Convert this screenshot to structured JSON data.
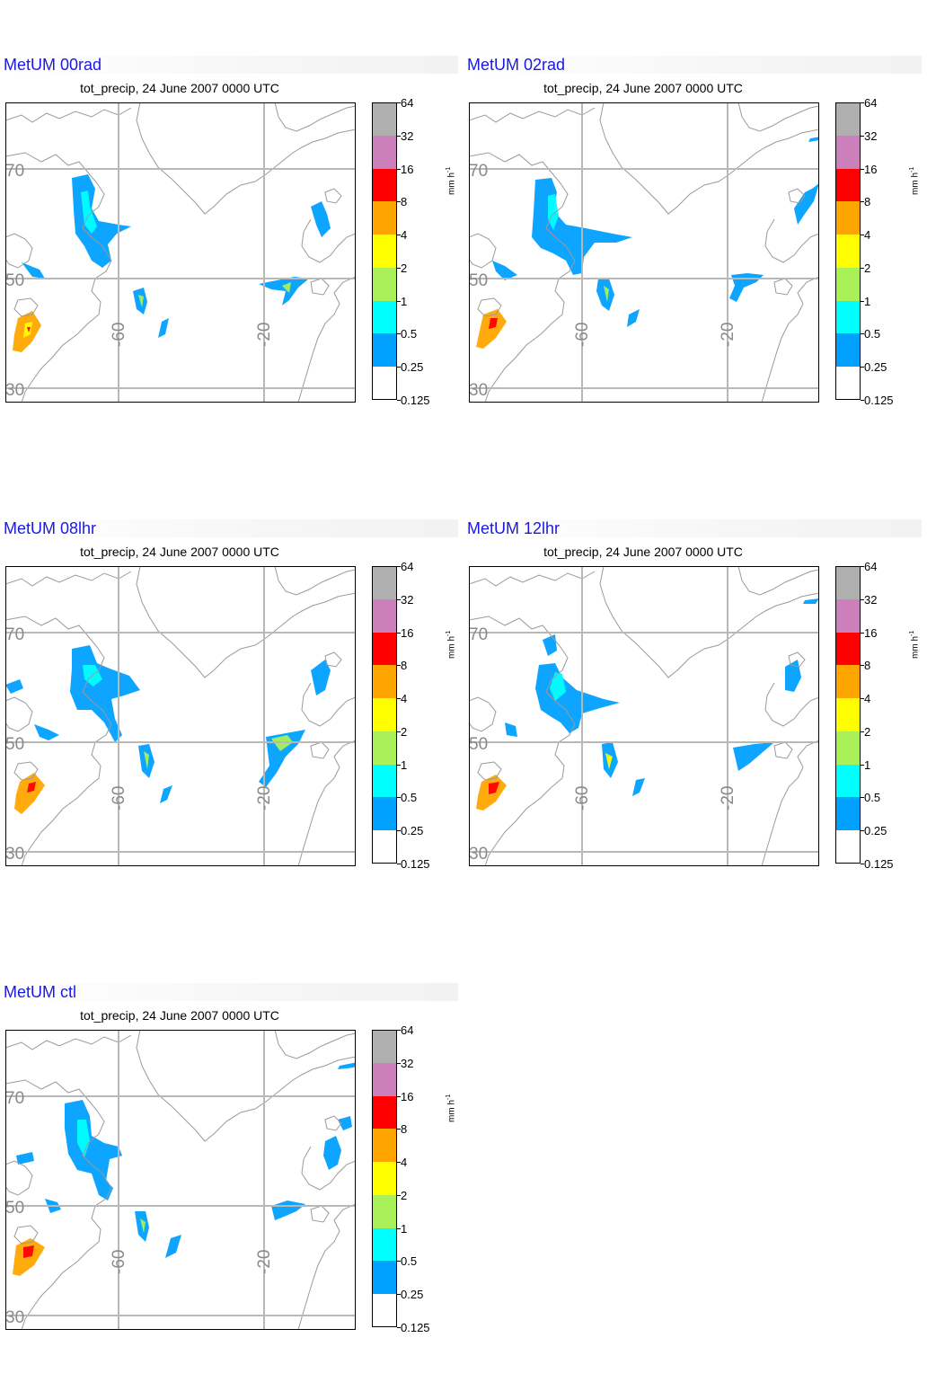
{
  "panels": [
    {
      "title": "MetUM 00rad",
      "subtitle": "tot_precip, 24 June 2007 0000 UTC"
    },
    {
      "title": "MetUM 02rad",
      "subtitle": "tot_precip, 24 June 2007 0000 UTC"
    },
    {
      "title": "MetUM 08lhr",
      "subtitle": "tot_precip, 24 June 2007 0000 UTC"
    },
    {
      "title": "MetUM 12lhr",
      "subtitle": "tot_precip, 24 June 2007 0000 UTC"
    },
    {
      "title": "MetUM ctl",
      "subtitle": "tot_precip, 24 June 2007 0000 UTC"
    }
  ],
  "colorbar": {
    "levels": [
      "64",
      "32",
      "16",
      "8",
      "4",
      "2",
      "1",
      "0.5",
      "0.25",
      "0.125"
    ],
    "colors": [
      "#b0b0b0",
      "#cc80bb",
      "#ff0000",
      "#ffa500",
      "#ffff00",
      "#a9f059",
      "#00ffff",
      "#00a0ff",
      "#ffffff"
    ],
    "units": "mm h",
    "units_exp": "-1"
  },
  "map": {
    "lat_labels": [
      "70",
      "50",
      "30"
    ],
    "lon_labels": [
      "-60",
      "-20"
    ]
  }
}
